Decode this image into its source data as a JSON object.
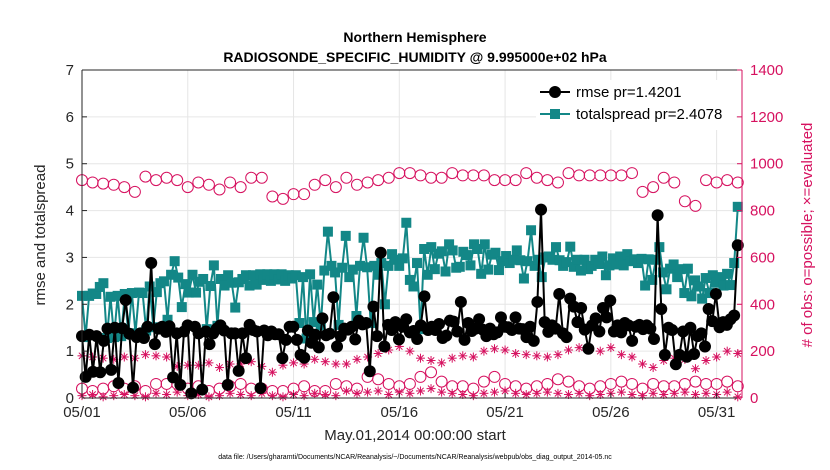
{
  "chart_data": {
    "type": "line",
    "title": "Northern Hemisphere",
    "subtitle": "RADIOSONDE_SPECIFIC_HUMIDITY @ 9.995000e+02 hPa",
    "xlabel": "May.01,2014 00:00:00 start",
    "ylabel": "rmse and totalspread",
    "ylabel_right": "# of obs: o=possible; ×=evaluated",
    "footer": "data file: /Users/gharamti/Documents/NCAR/Reanalysis/~/Documents/NCAR/Reanalysis/webpub/obs_diag_output_2014-05.nc",
    "xlim": [
      1,
      32.2
    ],
    "ylim": [
      0,
      7
    ],
    "ylim_right": [
      0,
      1400
    ],
    "x_ticks": [
      1,
      6,
      11,
      16,
      21,
      26,
      31
    ],
    "x_tick_labels": [
      "05/01",
      "05/06",
      "05/11",
      "05/16",
      "05/21",
      "05/26",
      "05/31"
    ],
    "y_ticks": [
      0,
      1,
      2,
      3,
      4,
      5,
      6,
      7
    ],
    "y_ticks_right": [
      0,
      200,
      400,
      600,
      800,
      1000,
      1200,
      1400
    ],
    "grid": true,
    "legend_location": "top-right",
    "colors": {
      "rmse": "#000000",
      "totalspread": "#138787",
      "obs": "#d6115f",
      "axis": "#262626",
      "grid": "#e6e6e6"
    },
    "series": [
      {
        "name": "rmse pr=1.4201",
        "axis": "left",
        "marker": "filled-circle",
        "values": [
          1.32,
          0.45,
          1.35,
          0.56,
          1.32,
          0.55,
          1.22,
          1.48,
          0.6,
          1.5,
          0.32,
          1.49,
          2.09,
          1.37,
          0.22,
          1.3,
          1.38,
          1.28,
          1.52,
          2.88,
          1.15,
          1.48,
          1.52,
          1.41,
          1.53,
          0.44,
          1.38,
          0.28,
          1.42,
          1.55,
          0.1,
          1.52,
          1.38,
          0.18,
          1.42,
          1.15,
          1.38,
          1.48,
          1.55,
          1.44,
          0.28,
          1.38,
          1.38,
          0.58,
          1.38,
          0.85,
          1.56,
          1.45,
          1.42,
          0.21,
          1.44,
          1.34,
          1.42,
          1.36,
          1.36,
          0.85,
          1.24,
          1.52,
          1.52,
          1.24,
          0.92,
          0.86,
          1.44,
          1.18,
          1.35,
          1.08,
          1.7,
          1.34,
          1.37,
          2.15,
          1.1,
          1.32,
          1.48,
          1.46,
          1.52,
          1.25,
          1.65,
          1.57,
          1.6,
          0.57,
          1.95,
          1.32,
          3.1,
          1.1,
          1.56,
          1.45,
          1.62,
          1.25,
          1.52,
          1.68,
          1.4,
          1.43,
          1.26,
          1.55,
          2.17,
          1.45,
          1.52,
          1.45,
          1.58,
          1.28,
          1.33,
          1.65,
          1.63,
          1.42,
          2.05,
          1.24,
          1.6,
          1.43,
          1.48,
          1.68,
          1.46,
          1.32,
          1.48,
          1.36,
          1.4,
          1.72,
          1.52,
          1.51,
          1.45,
          1.72,
          1.48,
          1.47,
          1.3,
          1.52,
          1.22,
          2.05,
          4.02,
          1.62,
          1.41,
          1.55,
          1.48,
          2.22,
          1.38,
          1.3,
          2.12,
          1.95,
          1.62,
          1.92,
          1.46,
          1.05,
          1.55,
          1.7,
          1.42,
          1.92,
          1.72,
          2.08,
          1.42,
          1.55,
          1.4,
          1.6,
          1.55,
          1.22,
          1.52,
          1.56,
          1.47,
          1.55,
          1.48,
          1.26,
          3.9,
          1.9,
          0.92,
          1.5,
          1.45,
          0.72,
          0.92,
          1.42,
          0.88,
          1.5,
          0.94,
          1.32,
          1.38,
          1.1,
          1.9,
          1.64,
          2.22,
          1.51,
          1.62,
          1.56,
          1.68,
          1.76,
          3.26
        ]
      },
      {
        "name": "totalspread pr=2.4078",
        "axis": "left",
        "marker": "filled-square",
        "values": [
          2.18,
          1.3,
          2.18,
          2.23,
          2.22,
          2.37,
          2.45,
          1.28,
          2.16,
          1.3,
          2.18,
          1.32,
          2.22,
          1.38,
          2.24,
          1.38,
          2.25,
          2.24,
          1.44,
          2.38,
          1.51,
          2.26,
          2.45,
          2.49,
          1.67,
          2.63,
          2.92,
          2.57,
          1.94,
          2.43,
          2.25,
          2.63,
          2.25,
          2.48,
          2.54,
          1.47,
          2.39,
          2.83,
          1.54,
          2.54,
          2.4,
          2.62,
          2.46,
          1.93,
          2.47,
          2.54,
          2.62,
          2.4,
          2.62,
          2.42,
          2.64,
          2.52,
          2.64,
          2.5,
          2.64,
          2.53,
          2.64,
          2.5,
          2.62,
          2.55,
          2.62,
          1.6,
          2.58,
          1.27,
          2.64,
          1.62,
          2.42,
          1.55,
          2.72,
          3.55,
          2.82,
          2.68,
          1.56,
          2.78,
          3.46,
          2.58,
          2.74,
          1.75,
          2.82,
          3.42,
          2.79,
          1.6,
          2.82,
          2.63,
          2.88,
          2.0,
          2.82,
          3.07,
          2.95,
          2.82,
          2.98,
          3.74,
          2.52,
          2.38,
          2.88,
          1.47,
          3.18,
          2.63,
          3.22,
          2.75,
          3.08,
          3.13,
          2.7,
          3.28,
          3.15,
          2.78,
          2.8,
          3.12,
          3.05,
          2.83,
          3.28,
          3.18,
          2.65,
          3.28,
          2.74,
          3.06,
          3.1,
          2.73,
          2.92,
          3.03,
          2.88,
          2.95,
          3.15,
          2.94,
          2.55,
          2.92,
          3.58,
          2.82,
          2.95,
          2.58,
          3.0,
          3.02,
          2.95,
          3.22,
          2.94,
          2.82,
          2.9,
          3.23,
          2.8,
          2.95,
          2.72,
          2.95,
          2.75,
          2.82,
          2.95,
          2.86,
          3.02,
          2.62,
          2.83,
          2.98,
          2.85,
          3.02,
          2.83,
          3.07,
          2.92,
          2.96,
          2.88,
          2.97,
          2.4,
          2.96,
          2.52,
          2.95,
          3.22,
          2.68,
          2.32,
          2.76,
          2.85,
          2.58,
          2.75,
          2.24,
          2.76,
          2.17,
          2.51,
          2.38,
          2.12,
          2.56,
          2.24,
          2.62,
          2.46,
          2.58,
          2.4,
          2.65,
          2.41,
          2.88,
          4.08
        ]
      },
      {
        "name": "possible obs",
        "axis": "right",
        "marker": "open-circle",
        "x": [
          1,
          1.5,
          2,
          2.5,
          3,
          3.5,
          4,
          4.5,
          5,
          5.5,
          6,
          6.5,
          7,
          7.5,
          8,
          8.5,
          9,
          9.5,
          10,
          10.5,
          11,
          11.5,
          12,
          12.5,
          13,
          13.5,
          14,
          14.5,
          15,
          15.5,
          16,
          16.5,
          17,
          17.5,
          18,
          18.5,
          19,
          19.5,
          20,
          20.5,
          21,
          21.5,
          22,
          22.5,
          23,
          23.5,
          24,
          24.5,
          25,
          25.5,
          26,
          26.5,
          27,
          27.5,
          28,
          28.5,
          29,
          29.5,
          30,
          30.5,
          31,
          31.5,
          32
        ],
        "values": [
          930,
          920,
          915,
          910,
          900,
          880,
          945,
          930,
          940,
          930,
          900,
          920,
          910,
          890,
          920,
          900,
          940,
          940,
          860,
          850,
          870,
          870,
          910,
          930,
          900,
          940,
          910,
          920,
          930,
          940,
          960,
          960,
          950,
          940,
          940,
          960,
          950,
          950,
          950,
          930,
          930,
          930,
          960,
          940,
          930,
          920,
          960,
          950,
          950,
          950,
          950,
          950,
          960,
          880,
          900,
          940,
          920,
          840,
          820,
          930,
          920,
          930,
          920
        ]
      },
      {
        "name": "possible obs (0Z)",
        "axis": "right",
        "marker": "open-circle",
        "x": [
          1,
          1.5,
          2,
          2.5,
          3,
          3.5,
          4,
          4.5,
          5,
          5.5,
          6,
          6.5,
          7,
          7.5,
          8,
          8.5,
          9,
          9.5,
          10,
          10.5,
          11,
          11.5,
          12,
          12.5,
          13,
          13.5,
          14,
          14.5,
          15,
          15.5,
          16,
          16.5,
          17,
          17.5,
          18,
          18.5,
          19,
          19.5,
          20,
          20.5,
          21,
          21.5,
          22,
          22.5,
          23,
          23.5,
          24,
          24.5,
          25,
          25.5,
          26,
          26.5,
          27,
          27.5,
          28,
          28.5,
          29,
          29.5,
          30,
          30.5,
          31,
          31.5,
          32
        ],
        "values": [
          40,
          30,
          40,
          50,
          40,
          50,
          30,
          60,
          60,
          60,
          40,
          50,
          30,
          40,
          50,
          60,
          40,
          40,
          30,
          30,
          40,
          50,
          30,
          30,
          60,
          50,
          40,
          90,
          80,
          60,
          50,
          60,
          90,
          110,
          70,
          50,
          50,
          40,
          70,
          90,
          60,
          50,
          40,
          50,
          60,
          80,
          70,
          50,
          40,
          50,
          60,
          70,
          60,
          40,
          60,
          50,
          50,
          60,
          70,
          60,
          60,
          70,
          50
        ]
      },
      {
        "name": "evaluated obs",
        "axis": "right",
        "marker": "asterisk",
        "x": [
          1,
          1.5,
          2,
          2.5,
          3,
          3.5,
          4,
          4.5,
          5,
          5.5,
          6,
          6.5,
          7,
          7.5,
          8,
          8.5,
          9,
          9.5,
          10,
          10.5,
          11,
          11.5,
          12,
          12.5,
          13,
          13.5,
          14,
          14.5,
          15,
          15.5,
          16,
          16.5,
          17,
          17.5,
          18,
          18.5,
          19,
          19.5,
          20,
          20.5,
          21,
          21.5,
          22,
          22.5,
          23,
          23.5,
          24,
          24.5,
          25,
          25.5,
          26,
          26.5,
          27,
          27.5,
          28,
          28.5,
          29,
          29.5,
          30,
          30.5,
          31,
          31.5,
          32
        ],
        "values": [
          180,
          175,
          170,
          165,
          175,
          170,
          185,
          180,
          175,
          135,
          140,
          140,
          150,
          130,
          145,
          145,
          155,
          135,
          110,
          140,
          150,
          145,
          165,
          155,
          145,
          145,
          165,
          175,
          190,
          205,
          220,
          200,
          170,
          160,
          150,
          170,
          180,
          175,
          200,
          210,
          205,
          190,
          185,
          180,
          175,
          185,
          205,
          215,
          210,
          200,
          215,
          185,
          175,
          145,
          130,
          160,
          170,
          165,
          125,
          160,
          175,
          200,
          190
        ]
      },
      {
        "name": "evaluated obs (0Z)",
        "axis": "right",
        "marker": "asterisk",
        "x": [
          1,
          1.5,
          2,
          2.5,
          3,
          3.5,
          4,
          4.5,
          5,
          5.5,
          6,
          6.5,
          7,
          7.5,
          8,
          8.5,
          9,
          9.5,
          10,
          10.5,
          11,
          11.5,
          12,
          12.5,
          13,
          13.5,
          14,
          14.5,
          15,
          15.5,
          16,
          16.5,
          17,
          17.5,
          18,
          18.5,
          19,
          19.5,
          20,
          20.5,
          21,
          21.5,
          22,
          22.5,
          23,
          23.5,
          24,
          24.5,
          25,
          25.5,
          26,
          26.5,
          27,
          27.5,
          28,
          28.5,
          29,
          29.5,
          30,
          30.5,
          31,
          31.5,
          32
        ],
        "values": [
          10,
          15,
          5,
          10,
          15,
          10,
          5,
          20,
          15,
          25,
          10,
          15,
          5,
          10,
          20,
          15,
          10,
          20,
          10,
          5,
          15,
          10,
          20,
          15,
          10,
          30,
          20,
          25,
          30,
          15,
          25,
          20,
          30,
          40,
          25,
          20,
          15,
          10,
          20,
          25,
          30,
          20,
          15,
          20,
          25,
          20,
          15,
          20,
          10,
          15,
          20,
          25,
          15,
          10,
          20,
          15,
          20,
          25,
          15,
          20,
          15,
          25,
          5
        ]
      }
    ]
  }
}
